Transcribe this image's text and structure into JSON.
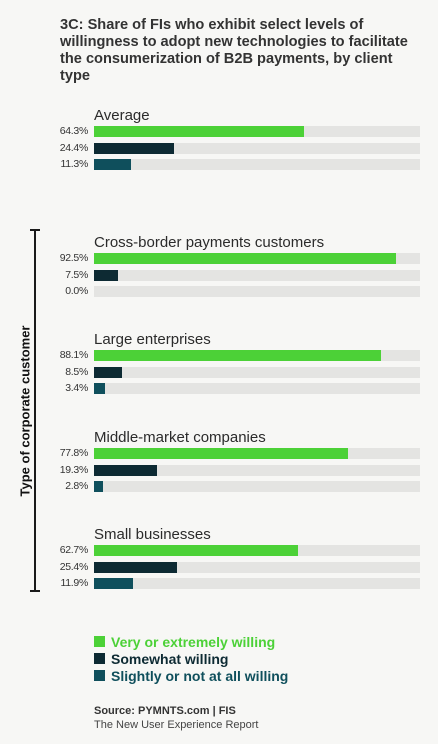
{
  "header": {
    "title": "3C: Share of FIs who exhibit select levels of willingness to adopt new technologies to facilitate the consumerization of B2B payments, by client type"
  },
  "axis": {
    "ylabel": "Type of corporate customer"
  },
  "legend": {
    "items": [
      {
        "label": "Very or extremely willing",
        "color": "#4cd137"
      },
      {
        "label": "Somewhat willing",
        "color": "#0d2a33"
      },
      {
        "label": "Slightly or not at all willing",
        "color": "#0f4f5c"
      }
    ]
  },
  "source": {
    "line1": "Source: PYMNTS.com  |  FIS",
    "line2": "The New User Experience Report"
  },
  "chart_data": {
    "type": "bar",
    "orientation": "horizontal",
    "xlim": [
      0,
      100
    ],
    "series_names": [
      "Very or extremely willing",
      "Somewhat willing",
      "Slightly or not at all willing"
    ],
    "colors": [
      "#4cd137",
      "#0d2a33",
      "#0f4f5c"
    ],
    "groups": [
      {
        "name": "Average",
        "values": [
          64.3,
          24.4,
          11.3
        ],
        "labels": [
          "64.3%",
          "24.4%",
          "11.3%"
        ]
      },
      {
        "name": "Cross-border payments customers",
        "values": [
          92.5,
          7.5,
          0.0
        ],
        "labels": [
          "92.5%",
          "7.5%",
          "0.0%"
        ]
      },
      {
        "name": "Large enterprises",
        "values": [
          88.1,
          8.5,
          3.4
        ],
        "labels": [
          "88.1%",
          "8.5%",
          "3.4%"
        ]
      },
      {
        "name": "Middle-market companies",
        "values": [
          77.8,
          19.3,
          2.8
        ],
        "labels": [
          "77.8%",
          "19.3%",
          "2.8%"
        ]
      },
      {
        "name": "Small businesses",
        "values": [
          62.7,
          25.4,
          11.9
        ],
        "labels": [
          "62.7%",
          "25.4%",
          "11.9%"
        ]
      }
    ]
  }
}
